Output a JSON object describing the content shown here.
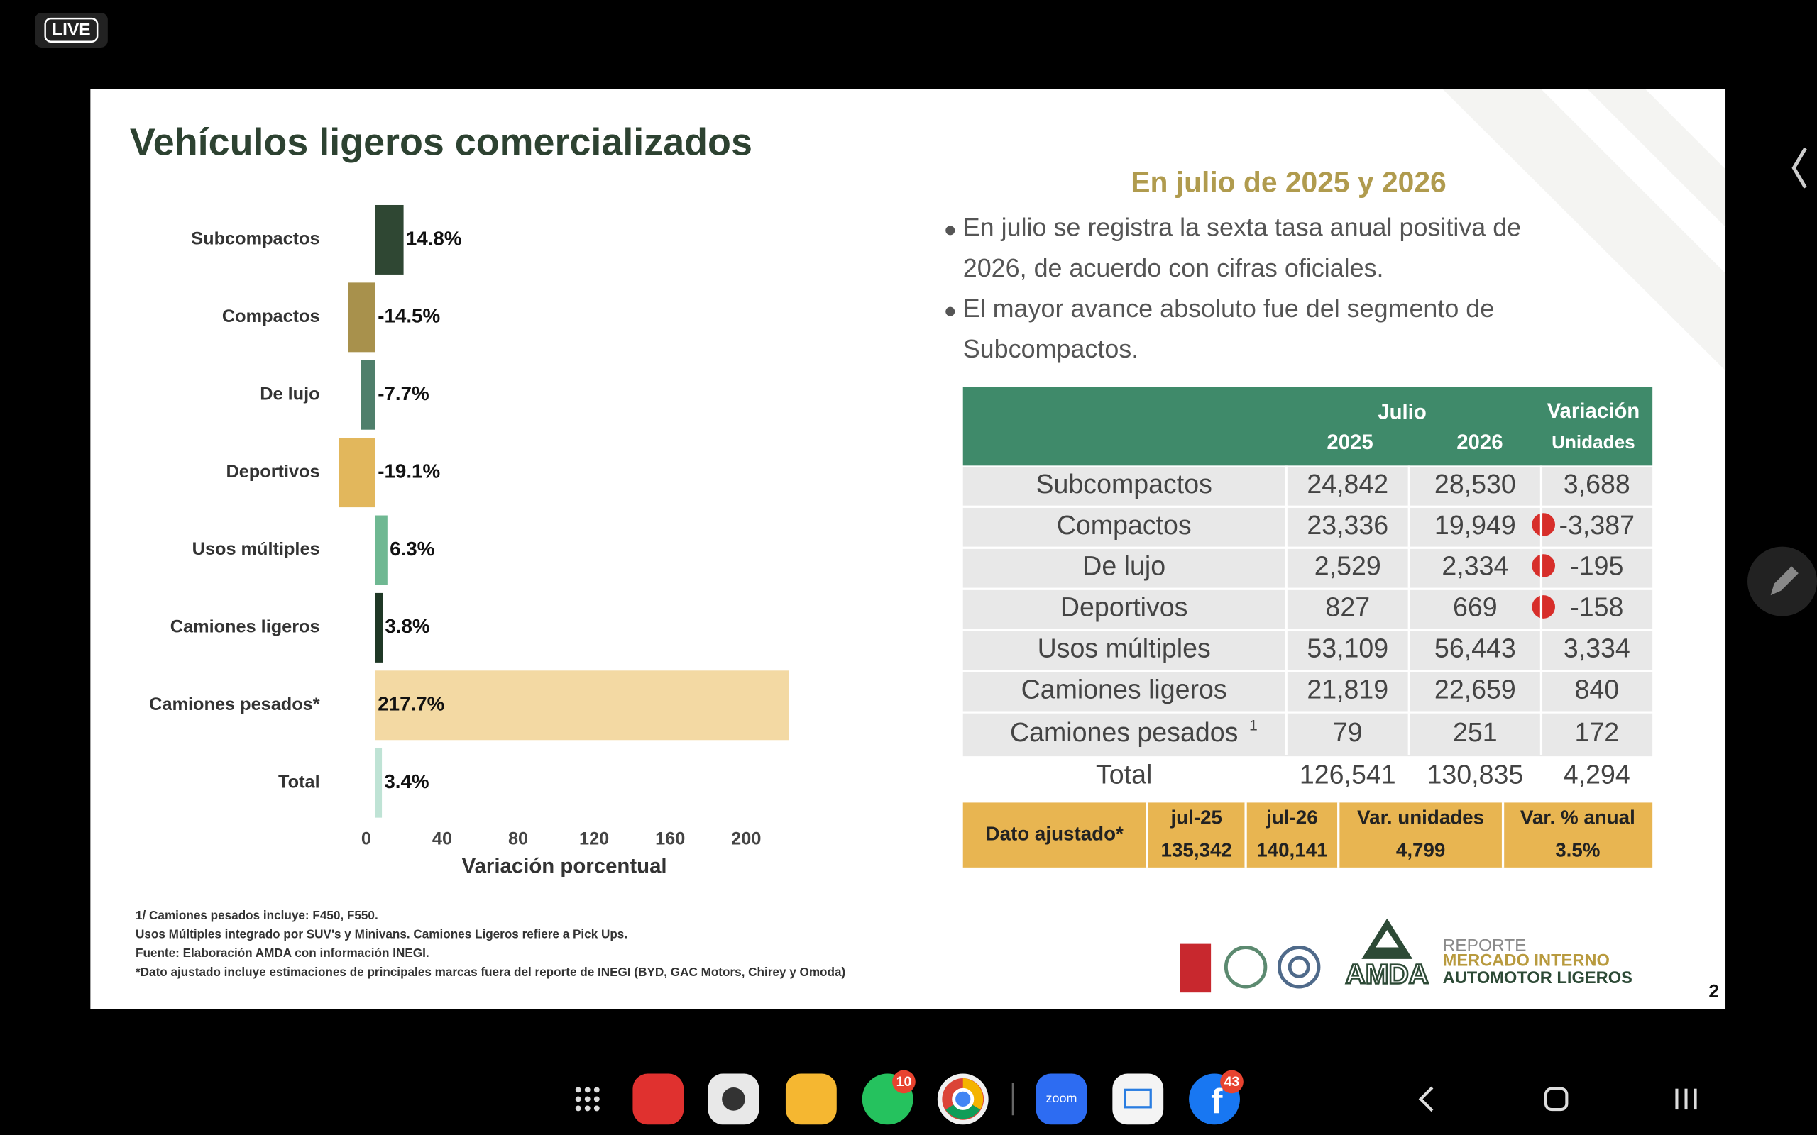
{
  "screen": {
    "live_badge": "LIVE",
    "taskbar": {
      "whatsapp_badge": "10",
      "zoom_label": "zoom",
      "facebook_badge": "43"
    }
  },
  "slide": {
    "title": "Vehículos ligeros comercializados",
    "subtitle": "En julio de 2025 y 2026",
    "bullets": [
      [
        "En julio se registra la sexta tasa anual positiva de",
        "2026, de acuerdo con cifras oficiales."
      ],
      [
        "El mayor avance absoluto fue del segmento de",
        "Subcompactos."
      ]
    ],
    "footnotes": [
      "1/ Camiones pesados incluye: F450, F550.",
      "Usos Múltiples integrado por SUV's y Minivans. Camiones Ligeros refiere a Pick Ups.",
      "Fuente: Elaboración AMDA con información INEGI.",
      "*Dato ajustado incluye estimaciones de principales marcas fuera del reporte de INEGI (BYD, GAC Motors, Chirey y Omoda)"
    ],
    "brand": {
      "logo": "AMDA",
      "line1": "REPORTE",
      "line2": "MERCADO INTERNO",
      "line3": "AUTOMOTOR LIGEROS"
    },
    "page_number": "2"
  },
  "chart_data": {
    "type": "bar",
    "orientation": "horizontal",
    "x_label": "Variación porcentual",
    "categories": [
      "Subcompactos",
      "Compactos",
      "De lujo",
      "Deportivos",
      "Usos múltiples",
      "Camiones ligeros",
      "Camiones pesados*",
      "Total"
    ],
    "values": [
      14.8,
      -14.5,
      -7.7,
      -19.1,
      6.3,
      3.8,
      217.7,
      3.4
    ],
    "value_labels": [
      "14.8%",
      "-14.5%",
      "-7.7%",
      "-19.1%",
      "6.3%",
      "3.8%",
      "217.7%",
      "3.4%"
    ],
    "colors": [
      "#2f4733",
      "#a8914c",
      "#4f7f6b",
      "#e2b75c",
      "#6fb892",
      "#1f3826",
      "#f3d9a3",
      "#bfe3d5"
    ],
    "xlim": [
      -20,
      222
    ],
    "xticks": [
      0,
      40,
      80,
      120,
      160,
      200
    ],
    "grid": false
  },
  "table": {
    "header": {
      "group": "Julio",
      "col1": "2025",
      "col2": "2026",
      "var_top": "Variación",
      "var_bottom": "Unidades"
    },
    "rows": [
      {
        "label": "Subcompactos",
        "cells": [
          "24,842",
          "28,530",
          "3,688"
        ]
      },
      {
        "label": "Compactos",
        "cells": [
          "23,336",
          "19,949",
          "-3,387"
        ]
      },
      {
        "label": "De lujo",
        "cells": [
          "2,529",
          "2,334",
          "-195"
        ]
      },
      {
        "label": "Deportivos",
        "cells": [
          "827",
          "669",
          "-158"
        ]
      },
      {
        "label": "Usos múltiples",
        "cells": [
          "53,109",
          "56,443",
          "3,334"
        ]
      },
      {
        "label": "Camiones ligeros",
        "cells": [
          "21,819",
          "22,659",
          "840"
        ]
      },
      {
        "label": "Camiones pesados",
        "note": "1",
        "cells": [
          "79",
          "251",
          "172"
        ]
      },
      {
        "label": "Total",
        "cells": [
          "126,541",
          "130,835",
          "4,294"
        ]
      }
    ],
    "adjusted": {
      "label": "Dato ajustado*",
      "columns": [
        [
          "jul-25",
          "135,342"
        ],
        [
          "jul-26",
          "140,141"
        ],
        [
          "Var. unidades",
          "4,799"
        ],
        [
          "Var. % anual",
          "3.5%"
        ]
      ]
    }
  }
}
